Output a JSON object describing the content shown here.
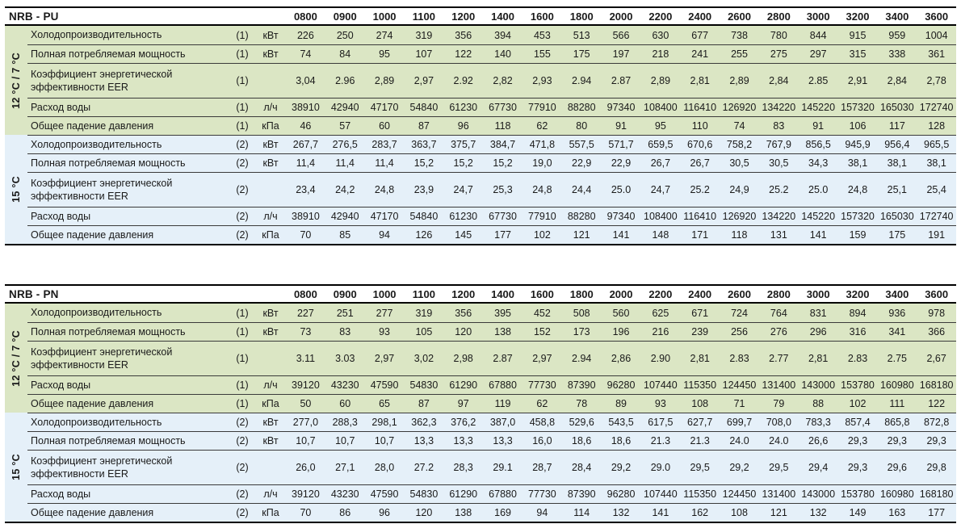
{
  "columns": [
    "0800",
    "0900",
    "1000",
    "1100",
    "1200",
    "1400",
    "1600",
    "1800",
    "2000",
    "2200",
    "2400",
    "2600",
    "2800",
    "3000",
    "3200",
    "3400",
    "3600"
  ],
  "colors": {
    "green_section_bg": "#dbe6c4",
    "blue_section_bg": "#e5f0f9",
    "rule_thick": "#000000",
    "rule_thin": "#3a3a3a",
    "text": "#1a1a1a"
  },
  "tables": [
    {
      "id": "nrb-pu",
      "title": "NRB - PU",
      "sections": [
        {
          "temp_label": "12 °C / 7 °C",
          "theme": "green",
          "rows": [
            {
              "label": "Холодопроизводительность",
              "note": "(1)",
              "unit": "кВт",
              "values": [
                "226",
                "250",
                "274",
                "319",
                "356",
                "394",
                "453",
                "513",
                "566",
                "630",
                "677",
                "738",
                "780",
                "844",
                "915",
                "959",
                "1004"
              ]
            },
            {
              "label": "Полная потребляемая мощность",
              "note": "(1)",
              "unit": "кВт",
              "values": [
                "74",
                "84",
                "95",
                "107",
                "122",
                "140",
                "155",
                "175",
                "197",
                "218",
                "241",
                "255",
                "275",
                "297",
                "315",
                "338",
                "361"
              ]
            },
            {
              "label": "Коэффициент энергетической эффективности EER",
              "note": "(1)",
              "unit": "",
              "tall": true,
              "values": [
                "3,04",
                "2.96",
                "2,89",
                "2,97",
                "2.92",
                "2,82",
                "2,93",
                "2.94",
                "2.87",
                "2,89",
                "2,81",
                "2,89",
                "2,84",
                "2.85",
                "2,91",
                "2,84",
                "2,78"
              ]
            },
            {
              "label": "Расход воды",
              "note": "(1)",
              "unit": "л/ч",
              "values": [
                "38910",
                "42940",
                "47170",
                "54840",
                "61230",
                "67730",
                "77910",
                "88280",
                "97340",
                "108400",
                "116410",
                "126920",
                "134220",
                "145220",
                "157320",
                "165030",
                "172740"
              ]
            },
            {
              "label": "Общее падение давления",
              "note": "(1)",
              "unit": "кПа",
              "values": [
                "46",
                "57",
                "60",
                "87",
                "96",
                "118",
                "62",
                "80",
                "91",
                "95",
                "110",
                "74",
                "83",
                "91",
                "106",
                "117",
                "128"
              ]
            }
          ]
        },
        {
          "temp_label": "15 °C",
          "theme": "blue",
          "rows": [
            {
              "label": "Холодопроизводительность",
              "note": "(2)",
              "unit": "кВт",
              "values": [
                "267,7",
                "276,5",
                "283,7",
                "363,7",
                "375,7",
                "384,7",
                "471,8",
                "557,5",
                "571,7",
                "659,5",
                "670,6",
                "758,2",
                "767,9",
                "856,5",
                "945,9",
                "956,4",
                "965,5"
              ]
            },
            {
              "label": "Полная потребляемая мощность",
              "note": "(2)",
              "unit": "кВт",
              "values": [
                "11,4",
                "11,4",
                "11,4",
                "15,2",
                "15,2",
                "15,2",
                "19,0",
                "22,9",
                "22,9",
                "26,7",
                "26,7",
                "30,5",
                "30,5",
                "34,3",
                "38,1",
                "38,1",
                "38,1"
              ]
            },
            {
              "label": "Коэффициент энергетической эффективности EER",
              "note": "(2)",
              "unit": "",
              "tall": true,
              "values": [
                "23,4",
                "24,2",
                "24,8",
                "23,9",
                "24,7",
                "25,3",
                "24,8",
                "24,4",
                "25.0",
                "24,7",
                "25.2",
                "24,9",
                "25.2",
                "25.0",
                "24,8",
                "25,1",
                "25,4"
              ]
            },
            {
              "label": "Расход воды",
              "note": "(2)",
              "unit": "л/ч",
              "values": [
                "38910",
                "42940",
                "47170",
                "54840",
                "61230",
                "67730",
                "77910",
                "88280",
                "97340",
                "108400",
                "116410",
                "126920",
                "134220",
                "145220",
                "157320",
                "165030",
                "172740"
              ]
            },
            {
              "label": "Общее падение давления",
              "note": "(2)",
              "unit": "кПа",
              "values": [
                "70",
                "85",
                "94",
                "126",
                "145",
                "177",
                "102",
                "121",
                "141",
                "148",
                "171",
                "118",
                "131",
                "141",
                "159",
                "175",
                "191"
              ]
            }
          ]
        }
      ]
    },
    {
      "id": "nrb-pn",
      "title": "NRB - PN",
      "sections": [
        {
          "temp_label": "12 °C / 7 °C",
          "theme": "green",
          "rows": [
            {
              "label": "Холодопроизводительность",
              "note": "(1)",
              "unit": "кВт",
              "values": [
                "227",
                "251",
                "277",
                "319",
                "356",
                "395",
                "452",
                "508",
                "560",
                "625",
                "671",
                "724",
                "764",
                "831",
                "894",
                "936",
                "978"
              ]
            },
            {
              "label": "Полная потребляемая мощность",
              "note": "(1)",
              "unit": "кВт",
              "values": [
                "73",
                "83",
                "93",
                "105",
                "120",
                "138",
                "152",
                "173",
                "196",
                "216",
                "239",
                "256",
                "276",
                "296",
                "316",
                "341",
                "366"
              ]
            },
            {
              "label": "Коэффициент энергетической эффективности EER",
              "note": "(1)",
              "unit": "",
              "tall": true,
              "values": [
                "3.11",
                "3.03",
                "2,97",
                "3,02",
                "2,98",
                "2.87",
                "2,97",
                "2.94",
                "2,86",
                "2.90",
                "2,81",
                "2.83",
                "2.77",
                "2,81",
                "2.83",
                "2.75",
                "2,67"
              ]
            },
            {
              "label": "Расход воды",
              "note": "(1)",
              "unit": "л/ч",
              "values": [
                "39120",
                "43230",
                "47590",
                "54830",
                "61290",
                "67880",
                "77730",
                "87390",
                "96280",
                "107440",
                "115350",
                "124450",
                "131400",
                "143000",
                "153780",
                "160980",
                "168180"
              ]
            },
            {
              "label": "Общее падение давления",
              "note": "(1)",
              "unit": "кПа",
              "values": [
                "50",
                "60",
                "65",
                "87",
                "97",
                "119",
                "62",
                "78",
                "89",
                "93",
                "108",
                "71",
                "79",
                "88",
                "102",
                "111",
                "122"
              ]
            }
          ]
        },
        {
          "temp_label": "15 °C",
          "theme": "blue",
          "rows": [
            {
              "label": "Холодопроизводительность",
              "note": "(2)",
              "unit": "кВт",
              "values": [
                "277,0",
                "288,3",
                "298,1",
                "362,3",
                "376,2",
                "387,0",
                "458,8",
                "529,6",
                "543,5",
                "617,5",
                "627,7",
                "699,7",
                "708,0",
                "783,3",
                "857,4",
                "865,8",
                "872,8"
              ]
            },
            {
              "label": "Полная потребляемая мощность",
              "note": "(2)",
              "unit": "кВт",
              "values": [
                "10,7",
                "10,7",
                "10,7",
                "13,3",
                "13,3",
                "13,3",
                "16,0",
                "18,6",
                "18,6",
                "21.3",
                "21.3",
                "24.0",
                "24.0",
                "26,6",
                "29,3",
                "29,3",
                "29,3"
              ]
            },
            {
              "label": "Коэффициент энергетической эффективности EER",
              "note": "(2)",
              "unit": "",
              "tall": true,
              "values": [
                "26,0",
                "27,1",
                "28,0",
                "27.2",
                "28,3",
                "29.1",
                "28,7",
                "28,4",
                "29,2",
                "29.0",
                "29,5",
                "29,2",
                "29,5",
                "29,4",
                "29,3",
                "29,6",
                "29,8"
              ]
            },
            {
              "label": "Расход воды",
              "note": "(2)",
              "unit": "л/ч",
              "values": [
                "39120",
                "43230",
                "47590",
                "54830",
                "61290",
                "67880",
                "77730",
                "87390",
                "96280",
                "107440",
                "115350",
                "124450",
                "131400",
                "143000",
                "153780",
                "160980",
                "168180"
              ]
            },
            {
              "label": "Общее падение давления",
              "note": "(2)",
              "unit": "кПа",
              "values": [
                "70",
                "86",
                "96",
                "120",
                "138",
                "169",
                "94",
                "114",
                "132",
                "141",
                "162",
                "108",
                "121",
                "132",
                "149",
                "163",
                "177"
              ]
            }
          ]
        }
      ]
    }
  ]
}
